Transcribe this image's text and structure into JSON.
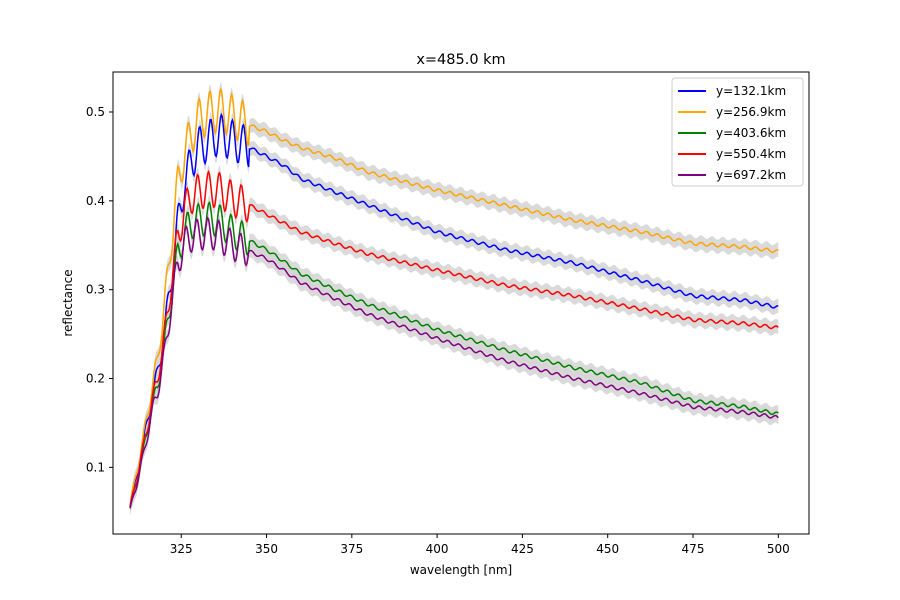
{
  "chart_data": {
    "type": "line",
    "title": "x=485.0 km",
    "xlabel": "wavelength [nm]",
    "ylabel": "reflectance",
    "xlim": [
      305,
      509
    ],
    "ylim": [
      0.025,
      0.545
    ],
    "xticks": [
      325,
      350,
      375,
      400,
      425,
      450,
      475,
      500
    ],
    "yticks": [
      0.1,
      0.2,
      0.3,
      0.4,
      0.5
    ],
    "xtick_labels": [
      "325",
      "350",
      "375",
      "400",
      "425",
      "450",
      "475",
      "500"
    ],
    "ytick_labels": [
      "0.1",
      "0.2",
      "0.3",
      "0.4",
      "0.5"
    ],
    "grid": false,
    "legend_position": "top-right",
    "band_color": "#d3d3d3",
    "series": [
      {
        "name": "y=132.1km",
        "color": "#0000ff",
        "x": [
          310,
          312,
          314,
          316,
          318,
          320,
          322,
          324,
          326,
          328,
          330,
          332,
          334,
          336,
          338,
          340,
          345,
          350,
          355,
          360,
          370,
          380,
          400,
          420,
          440,
          460,
          475,
          490,
          500
        ],
        "y": [
          0.057,
          0.09,
          0.13,
          0.17,
          0.205,
          0.25,
          0.31,
          0.375,
          0.42,
          0.445,
          0.46,
          0.465,
          0.47,
          0.475,
          0.472,
          0.468,
          0.46,
          0.45,
          0.44,
          0.425,
          0.41,
          0.395,
          0.365,
          0.345,
          0.33,
          0.31,
          0.293,
          0.288,
          0.28
        ]
      },
      {
        "name": "y=256.9km",
        "color": "#ffa500",
        "x": [
          310,
          312,
          314,
          316,
          318,
          320,
          322,
          324,
          326,
          328,
          330,
          332,
          334,
          336,
          338,
          340,
          345,
          350,
          355,
          360,
          370,
          380,
          400,
          420,
          440,
          460,
          475,
          490,
          500
        ],
        "y": [
          0.058,
          0.095,
          0.135,
          0.18,
          0.22,
          0.28,
          0.35,
          0.42,
          0.455,
          0.475,
          0.49,
          0.497,
          0.5,
          0.502,
          0.5,
          0.495,
          0.485,
          0.478,
          0.468,
          0.46,
          0.448,
          0.432,
          0.412,
          0.395,
          0.378,
          0.365,
          0.352,
          0.348,
          0.343
        ]
      },
      {
        "name": "y=403.6km",
        "color": "#008000",
        "x": [
          310,
          312,
          314,
          316,
          318,
          320,
          322,
          324,
          326,
          328,
          330,
          332,
          334,
          336,
          338,
          340,
          345,
          350,
          355,
          360,
          370,
          380,
          400,
          420,
          440,
          460,
          475,
          490,
          500
        ],
        "y": [
          0.054,
          0.085,
          0.12,
          0.16,
          0.19,
          0.235,
          0.29,
          0.34,
          0.365,
          0.375,
          0.378,
          0.379,
          0.38,
          0.378,
          0.372,
          0.365,
          0.355,
          0.345,
          0.332,
          0.318,
          0.3,
          0.283,
          0.255,
          0.232,
          0.212,
          0.195,
          0.175,
          0.168,
          0.16
        ]
      },
      {
        "name": "y=550.4km",
        "color": "#ff0000",
        "x": [
          310,
          312,
          314,
          316,
          318,
          320,
          322,
          324,
          326,
          328,
          330,
          332,
          334,
          336,
          338,
          340,
          345,
          350,
          355,
          360,
          370,
          380,
          400,
          420,
          440,
          460,
          475,
          490,
          500
        ],
        "y": [
          0.055,
          0.088,
          0.125,
          0.165,
          0.2,
          0.245,
          0.305,
          0.36,
          0.39,
          0.405,
          0.41,
          0.412,
          0.413,
          0.412,
          0.408,
          0.402,
          0.395,
          0.385,
          0.375,
          0.365,
          0.352,
          0.34,
          0.322,
          0.305,
          0.293,
          0.278,
          0.266,
          0.262,
          0.257
        ]
      },
      {
        "name": "y=697.2km",
        "color": "#800080",
        "x": [
          310,
          312,
          314,
          316,
          318,
          320,
          322,
          324,
          326,
          328,
          330,
          332,
          334,
          336,
          338,
          340,
          345,
          350,
          355,
          360,
          370,
          380,
          400,
          420,
          440,
          460,
          475,
          490,
          500
        ],
        "y": [
          0.052,
          0.082,
          0.115,
          0.155,
          0.185,
          0.225,
          0.28,
          0.33,
          0.352,
          0.36,
          0.362,
          0.363,
          0.363,
          0.36,
          0.355,
          0.35,
          0.343,
          0.335,
          0.322,
          0.308,
          0.29,
          0.272,
          0.245,
          0.22,
          0.2,
          0.183,
          0.168,
          0.162,
          0.156
        ]
      }
    ]
  }
}
